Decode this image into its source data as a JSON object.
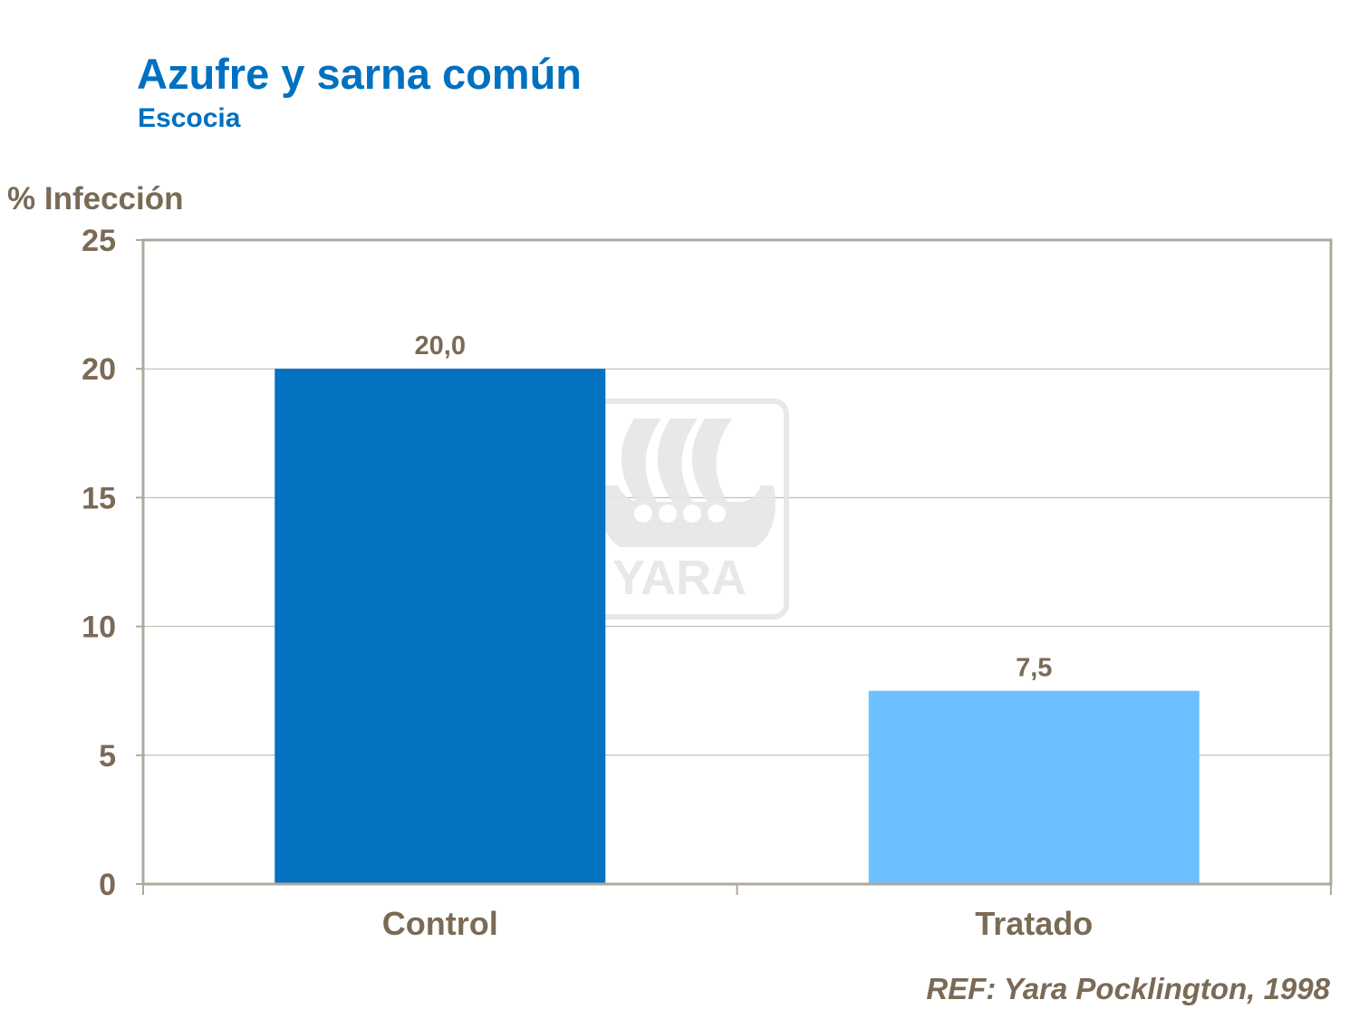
{
  "chart_data": {
    "type": "bar",
    "title": "Azufre y sarna común",
    "subtitle": "Escocia",
    "xlabel": "",
    "ylabel": "% Infección",
    "categories": [
      "Control",
      "Tratado"
    ],
    "values": [
      20.0,
      7.5
    ],
    "data_labels": [
      "20,0",
      "7,5"
    ],
    "colors": [
      "#0070c0",
      "#6bbfff"
    ],
    "ylim": [
      0,
      25
    ],
    "yticks": [
      0,
      5,
      10,
      15,
      20,
      25
    ],
    "grid": true,
    "legend": "none"
  },
  "reference": "REF: Yara Pocklington,  1998",
  "watermark": {
    "text": "YARA",
    "color": "#e6e6e6"
  },
  "colors": {
    "title": "#0070c0",
    "text": "#7a6a56",
    "axis": "#b0a89e",
    "grid": "#b8b0a6"
  }
}
